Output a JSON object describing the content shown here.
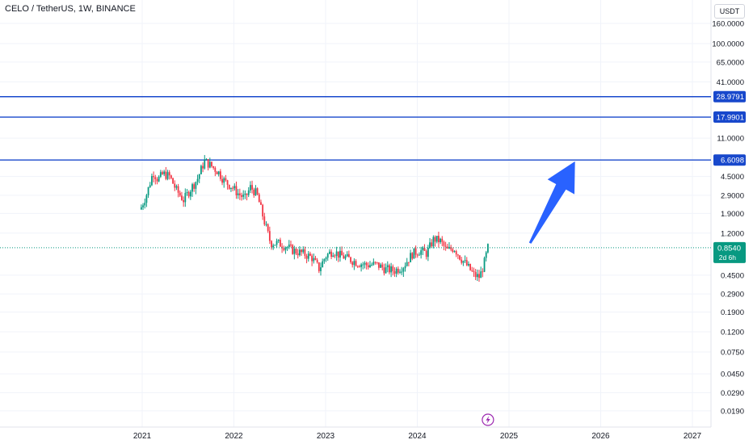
{
  "header": {
    "title": "CELO / TetherUS, 1W, BINANCE",
    "currency": "USDT"
  },
  "chart_data": {
    "type": "candlestick",
    "y_scale": "log",
    "y_ticks": [
      {
        "v": 160,
        "label": "160.0000"
      },
      {
        "v": 100,
        "label": "100.0000"
      },
      {
        "v": 65,
        "label": "65.0000"
      },
      {
        "v": 41,
        "label": "41.0000"
      },
      {
        "v": 28.9791,
        "label": "28.9791"
      },
      {
        "v": 17.9901,
        "label": "17.9901"
      },
      {
        "v": 11,
        "label": "11.0000"
      },
      {
        "v": 6.6098,
        "label": "6.6098"
      },
      {
        "v": 4.5,
        "label": "4.5000"
      },
      {
        "v": 2.9,
        "label": "2.9000"
      },
      {
        "v": 1.9,
        "label": "1.9000"
      },
      {
        "v": 1.2,
        "label": "1.2000"
      },
      {
        "v": 0.854,
        "label": "0.8540"
      },
      {
        "v": 0.45,
        "label": "0.4500"
      },
      {
        "v": 0.29,
        "label": "0.2900"
      },
      {
        "v": 0.19,
        "label": "0.1900"
      },
      {
        "v": 0.12,
        "label": "0.1200"
      },
      {
        "v": 0.075,
        "label": "0.0750"
      },
      {
        "v": 0.045,
        "label": "0.0450"
      },
      {
        "v": 0.029,
        "label": "0.0290"
      },
      {
        "v": 0.019,
        "label": "0.0190"
      }
    ],
    "x_ticks": [
      "2021",
      "2022",
      "2023",
      "2024",
      "2025",
      "2026",
      "2027"
    ],
    "horizontal_levels": [
      {
        "value": 28.9791,
        "label": "28.9791",
        "color": "#1848cc"
      },
      {
        "value": 17.9901,
        "label": "17.9901",
        "color": "#1848cc"
      },
      {
        "value": 6.6098,
        "label": "6.6098",
        "color": "#1848cc"
      }
    ],
    "current_price": {
      "value": 0.854,
      "label": "0.8540",
      "countdown": "2d 6h",
      "color": "#089981"
    },
    "arrow": {
      "from": {
        "year": 2025.23,
        "price": 0.95
      },
      "to": {
        "year": 2025.72,
        "price": 6.4
      },
      "color": "#2962ff"
    },
    "event_marker": {
      "year": 2024.77,
      "icon": "lightning-icon",
      "color": "#9c27b0"
    },
    "anchors": [
      [
        2020.99,
        2.2
      ],
      [
        2021.05,
        3.0
      ],
      [
        2021.12,
        5.0
      ],
      [
        2021.17,
        4.2
      ],
      [
        2021.23,
        4.8
      ],
      [
        2021.3,
        4.5
      ],
      [
        2021.37,
        3.3
      ],
      [
        2021.45,
        2.6
      ],
      [
        2021.53,
        3.4
      ],
      [
        2021.6,
        4.2
      ],
      [
        2021.68,
        6.5
      ],
      [
        2021.75,
        5.8
      ],
      [
        2021.83,
        5.0
      ],
      [
        2021.9,
        4.0
      ],
      [
        2021.97,
        3.6
      ],
      [
        2022.05,
        3.0
      ],
      [
        2022.12,
        2.7
      ],
      [
        2022.18,
        3.5
      ],
      [
        2022.25,
        3.0
      ],
      [
        2022.33,
        1.6
      ],
      [
        2022.4,
        0.95
      ],
      [
        2022.48,
        0.95
      ],
      [
        2022.55,
        0.9
      ],
      [
        2022.65,
        0.8
      ],
      [
        2022.75,
        0.75
      ],
      [
        2022.85,
        0.68
      ],
      [
        2022.93,
        0.52
      ],
      [
        2023.0,
        0.7
      ],
      [
        2023.08,
        0.8
      ],
      [
        2023.15,
        0.72
      ],
      [
        2023.25,
        0.66
      ],
      [
        2023.35,
        0.6
      ],
      [
        2023.45,
        0.57
      ],
      [
        2023.55,
        0.58
      ],
      [
        2023.65,
        0.52
      ],
      [
        2023.75,
        0.5
      ],
      [
        2023.85,
        0.56
      ],
      [
        2023.95,
        0.75
      ],
      [
        2024.03,
        0.8
      ],
      [
        2024.1,
        0.75
      ],
      [
        2024.18,
        1.05
      ],
      [
        2024.25,
        1.0
      ],
      [
        2024.32,
        0.8
      ],
      [
        2024.4,
        0.85
      ],
      [
        2024.47,
        0.68
      ],
      [
        2024.55,
        0.55
      ],
      [
        2024.62,
        0.45
      ],
      [
        2024.68,
        0.43
      ],
      [
        2024.73,
        0.6
      ],
      [
        2024.77,
        0.854
      ]
    ]
  }
}
